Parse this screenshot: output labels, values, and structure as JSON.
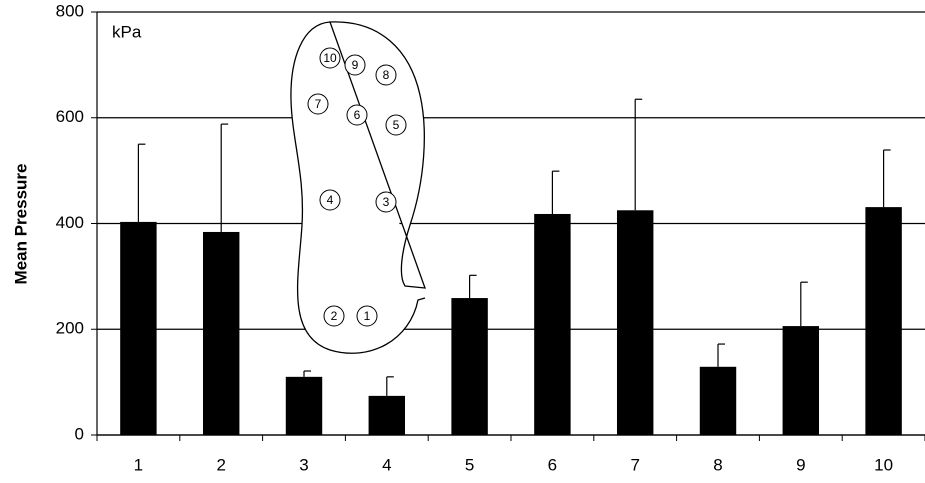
{
  "chart_data": {
    "type": "bar",
    "y_axis_label": "Mean Pressure",
    "annotation": "kPa",
    "categories": [
      "1",
      "2",
      "3",
      "4",
      "5",
      "6",
      "7",
      "8",
      "9",
      "10"
    ],
    "values": [
      403,
      384,
      110,
      74,
      259,
      418,
      425,
      129,
      206,
      431
    ],
    "errors": [
      147,
      204,
      11,
      36,
      43,
      81,
      210,
      43,
      83,
      108
    ],
    "color": "#000000",
    "ylim": [
      0,
      800
    ],
    "yticks": [
      0,
      200,
      400,
      600,
      800
    ],
    "grid": true
  }
}
